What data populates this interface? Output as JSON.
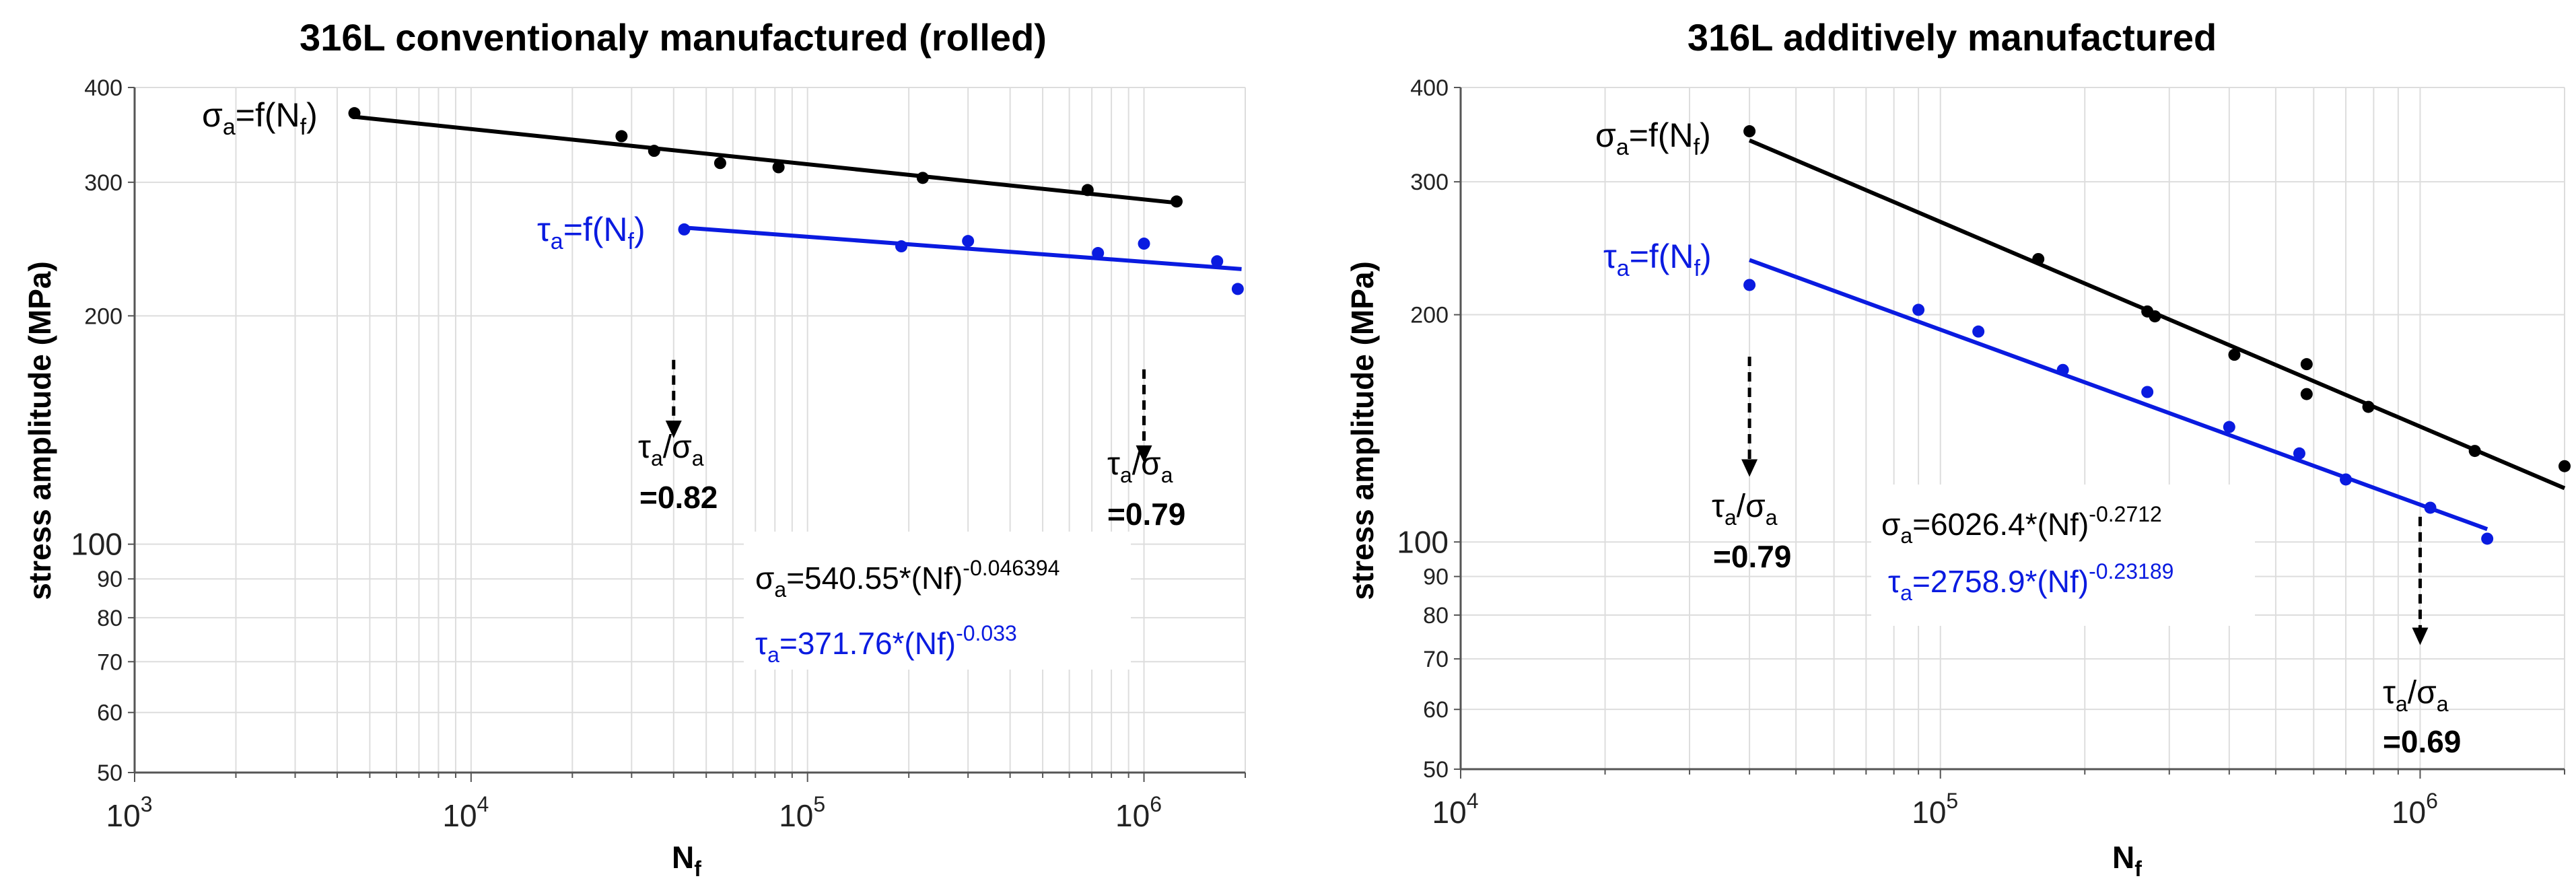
{
  "colors": {
    "sigma": "#000000",
    "tau": "#0a1be0",
    "grid": "#dddddd"
  },
  "chart_data": [
    {
      "type": "scatter",
      "title": "316L conventionaly manufactured (rolled)",
      "xlabel": "N",
      "xlabel_sub": "f",
      "ylabel": "stress amplitude (MPa)",
      "xscale": "log",
      "yscale": "log",
      "xlim": [
        1000,
        2000000
      ],
      "ylim": [
        50,
        400
      ],
      "x_tick_labels": [
        {
          "base": "10",
          "exp": "3",
          "value": 1000
        },
        {
          "base": "10",
          "exp": "4",
          "value": 10000
        },
        {
          "base": "10",
          "exp": "5",
          "value": 100000
        },
        {
          "base": "10",
          "exp": "6",
          "value": 1000000
        }
      ],
      "y_tick_labels": [
        "50",
        "60",
        "70",
        "80",
        "90",
        "100",
        "200",
        "300",
        "400"
      ],
      "y_tick_values": [
        50,
        60,
        70,
        80,
        90,
        100,
        200,
        300,
        400
      ],
      "series": [
        {
          "name": "sigma",
          "symbol": "σ",
          "sub": "a",
          "func": "=f(N",
          "func_sub": "f",
          "func_end": ")",
          "points": [
            [
              4500,
              370
            ],
            [
              28000,
              345
            ],
            [
              35000,
              330
            ],
            [
              55000,
              318
            ],
            [
              82000,
              314
            ],
            [
              220000,
              304
            ],
            [
              680000,
              293
            ],
            [
              1250000,
              283
            ]
          ],
          "fit": {
            "a": 540.55,
            "b": -0.046394,
            "x_range": [
              4500,
              1250000
            ]
          }
        },
        {
          "name": "tau",
          "symbol": "τ",
          "sub": "a",
          "func": "=f(N",
          "func_sub": "f",
          "func_end": ")",
          "points": [
            [
              43000,
              260
            ],
            [
              190000,
              247
            ],
            [
              300000,
              251
            ],
            [
              730000,
              242
            ],
            [
              1000000,
              249
            ],
            [
              1650000,
              236
            ],
            [
              1900000,
              217
            ]
          ],
          "fit": {
            "a": 371.76,
            "b": -0.033,
            "x_range": [
              43000,
              1950000
            ]
          }
        }
      ],
      "ratios": [
        {
          "x": 40000,
          "y_from": 175,
          "y_to": 138,
          "value": "=0.82"
        },
        {
          "x": 1000000,
          "y_from": 170,
          "y_to": 128,
          "value": "=0.79"
        }
      ],
      "equations": [
        {
          "sym": "σ",
          "sub": "a",
          "text": "=540.55*(Nf)",
          "sup": "-0.046394"
        },
        {
          "sym": "τ",
          "sub": "a",
          "text": "=371.76*(Nf)",
          "sup": "-0.033"
        }
      ]
    },
    {
      "type": "scatter",
      "title": "316L additively manufactured",
      "xlabel": "N",
      "xlabel_sub": "f",
      "ylabel": "stress amplitude (MPa)",
      "xscale": "log",
      "yscale": "log",
      "xlim": [
        10000,
        2000000
      ],
      "ylim": [
        50,
        400
      ],
      "x_tick_labels": [
        {
          "base": "10",
          "exp": "4",
          "value": 10000
        },
        {
          "base": "10",
          "exp": "5",
          "value": 100000
        },
        {
          "base": "10",
          "exp": "6",
          "value": 1000000
        }
      ],
      "y_tick_labels": [
        "50",
        "60",
        "70",
        "80",
        "90",
        "100",
        "200",
        "300",
        "400"
      ],
      "y_tick_values": [
        50,
        60,
        70,
        80,
        90,
        100,
        200,
        300,
        400
      ],
      "series": [
        {
          "name": "sigma",
          "symbol": "σ",
          "sub": "a",
          "func": "=f(N",
          "func_sub": "f",
          "func_end": ")",
          "points": [
            [
              40000,
              350
            ],
            [
              160000,
              237
            ],
            [
              270000,
              202
            ],
            [
              280000,
              199
            ],
            [
              410000,
              177
            ],
            [
              580000,
              172
            ],
            [
              580000,
              157
            ],
            [
              780000,
              151
            ],
            [
              1300000,
              132
            ],
            [
              2000000,
              126
            ]
          ],
          "fit": {
            "a": 6026.4,
            "b": -0.2712,
            "x_range": [
              40000,
              2000000
            ]
          }
        },
        {
          "name": "tau",
          "symbol": "τ",
          "sub": "a",
          "func": "=f(N",
          "func_sub": "f",
          "func_end": ")",
          "points": [
            [
              40000,
              219
            ],
            [
              90000,
              203
            ],
            [
              120000,
              190
            ],
            [
              180000,
              169
            ],
            [
              270000,
              158
            ],
            [
              400000,
              142
            ],
            [
              560000,
              131
            ],
            [
              700000,
              121
            ],
            [
              1050000,
              111
            ],
            [
              1380000,
              101
            ]
          ],
          "fit": {
            "a": 2758.9,
            "b": -0.23189,
            "x_range": [
              40000,
              1380000
            ]
          }
        }
      ],
      "ratios": [
        {
          "x": 40000,
          "y_from": 176,
          "y_to": 122,
          "value": "=0.79"
        },
        {
          "x": 1000000,
          "y_from": 108,
          "y_to": 73,
          "value": "=0.69"
        }
      ],
      "equations": [
        {
          "sym": "σ",
          "sub": "a",
          "text": "=6026.4*(Nf)",
          "sup": "-0.2712"
        },
        {
          "sym": "τ",
          "sub": "a",
          "text": "=2758.9*(Nf)",
          "sup": "-0.23189"
        }
      ]
    }
  ]
}
